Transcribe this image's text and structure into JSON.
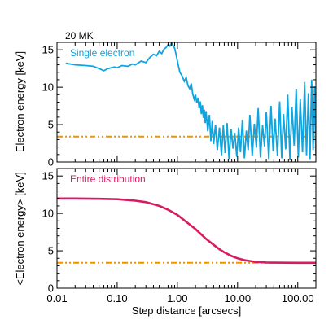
{
  "chart_data": [
    {
      "type": "line",
      "title": "20 MK",
      "annotation": "Single electron",
      "ylabel": "Electron energy [keV]",
      "xlabel": "",
      "x_scale": "log",
      "xlim": [
        0.01,
        200
      ],
      "ylim": [
        0,
        16
      ],
      "yticks": [
        0,
        5,
        10,
        15
      ],
      "reference_line": {
        "y": 3.4,
        "color": "#f39200",
        "style": "dash-dot-dot"
      },
      "series": [
        {
          "color": "#0ea5e0",
          "x": [
            0.014,
            0.02,
            0.03,
            0.04,
            0.05,
            0.06,
            0.07,
            0.09,
            0.1,
            0.12,
            0.15,
            0.18,
            0.2,
            0.25,
            0.3,
            0.35,
            0.4,
            0.45,
            0.5,
            0.55,
            0.6,
            0.65,
            0.7,
            0.75,
            0.8,
            0.85,
            0.9,
            0.95,
            1.0,
            1.1,
            1.2,
            1.3,
            1.4,
            1.5,
            1.6,
            1.7,
            1.8,
            1.9,
            2.0,
            2.1,
            2.2,
            2.3,
            2.4,
            2.5,
            2.6,
            2.7,
            2.8,
            2.9,
            3.0,
            3.2,
            3.4,
            3.6,
            3.8,
            4.0,
            4.3,
            4.6,
            5.0,
            5.4,
            5.8,
            6.2,
            6.7,
            7.2,
            7.8,
            8.4,
            9.0,
            9.7,
            10.4,
            11.2,
            12.0,
            13.0,
            14.0,
            15.0,
            16.0,
            17.5,
            19.0,
            20.5,
            22.0,
            24.0,
            26.0,
            28.0,
            30.0,
            33.0,
            36.0,
            39.0,
            42.0,
            46.0,
            50.0,
            54.0,
            58.0,
            63.0,
            68.0,
            74.0,
            80.0,
            87.0,
            94.0,
            102.0,
            110.0,
            120.0,
            130.0,
            140.0,
            150.0,
            160.0,
            170.0,
            180.0,
            190.0,
            200.0
          ],
          "y": [
            13.2,
            13.0,
            12.9,
            12.8,
            12.5,
            12.2,
            12.5,
            12.7,
            12.6,
            12.9,
            12.8,
            13.1,
            13.0,
            13.5,
            13.3,
            14.0,
            14.4,
            14.2,
            14.8,
            14.5,
            15.1,
            15.3,
            15.7,
            15.5,
            15.9,
            15.6,
            15.2,
            14.4,
            13.5,
            12.0,
            11.5,
            10.8,
            11.3,
            10.2,
            9.8,
            10.5,
            9.1,
            8.4,
            9.0,
            7.9,
            8.6,
            7.2,
            8.1,
            6.4,
            7.6,
            5.9,
            7.0,
            5.2,
            6.8,
            4.1,
            6.3,
            2.8,
            5.5,
            2.4,
            5.0,
            1.6,
            4.6,
            0.9,
            4.9,
            1.2,
            5.2,
            0.4,
            4.4,
            1.8,
            3.9,
            0.7,
            4.6,
            1.3,
            5.6,
            0.5,
            4.2,
            1.6,
            6.3,
            0.8,
            5.1,
            1.9,
            7.2,
            0.6,
            4.9,
            2.1,
            6.7,
            0.4,
            7.5,
            1.4,
            5.8,
            0.8,
            8.1,
            0.5,
            6.4,
            1.7,
            9.0,
            0.3,
            7.3,
            2.2,
            9.8,
            0.6,
            8.4,
            1.3,
            10.7,
            0.9,
            9.2,
            0.4,
            11.0,
            1.6,
            10.1,
            0.8
          ]
        }
      ]
    },
    {
      "type": "line",
      "annotation": "Entire distribution",
      "ylabel": "<Electron energy> [keV]",
      "xlabel": "Step distance [arcsecs]",
      "x_scale": "log",
      "xlim": [
        0.01,
        200
      ],
      "ylim": [
        0,
        16
      ],
      "yticks": [
        0,
        5,
        10,
        15
      ],
      "xticks": [
        0.01,
        0.1,
        1,
        10,
        100
      ],
      "xtick_labels": [
        "0.01",
        "0.10",
        "1.00",
        "10.00",
        "100.00"
      ],
      "reference_line": {
        "y": 3.4,
        "color": "#f39200",
        "style": "dash-dot-dot"
      },
      "series": [
        {
          "color": "#d81b60",
          "x": [
            0.01,
            0.02,
            0.05,
            0.1,
            0.2,
            0.3,
            0.5,
            0.7,
            1.0,
            1.5,
            2.0,
            3.0,
            4.0,
            5.0,
            6.0,
            8.0,
            10.0,
            13.0,
            17.0,
            20.0,
            25.0,
            30.0,
            40.0,
            60.0,
            100.0,
            200.0
          ],
          "y": [
            12.0,
            12.0,
            11.95,
            11.9,
            11.7,
            11.5,
            11.0,
            10.5,
            9.8,
            8.7,
            7.9,
            6.6,
            5.8,
            5.2,
            4.8,
            4.3,
            4.0,
            3.75,
            3.6,
            3.52,
            3.47,
            3.44,
            3.42,
            3.41,
            3.4,
            3.4
          ]
        }
      ]
    }
  ],
  "colors": {
    "single_electron": "#0ea5e0",
    "distribution": "#d81b60",
    "reference": "#f39200"
  }
}
